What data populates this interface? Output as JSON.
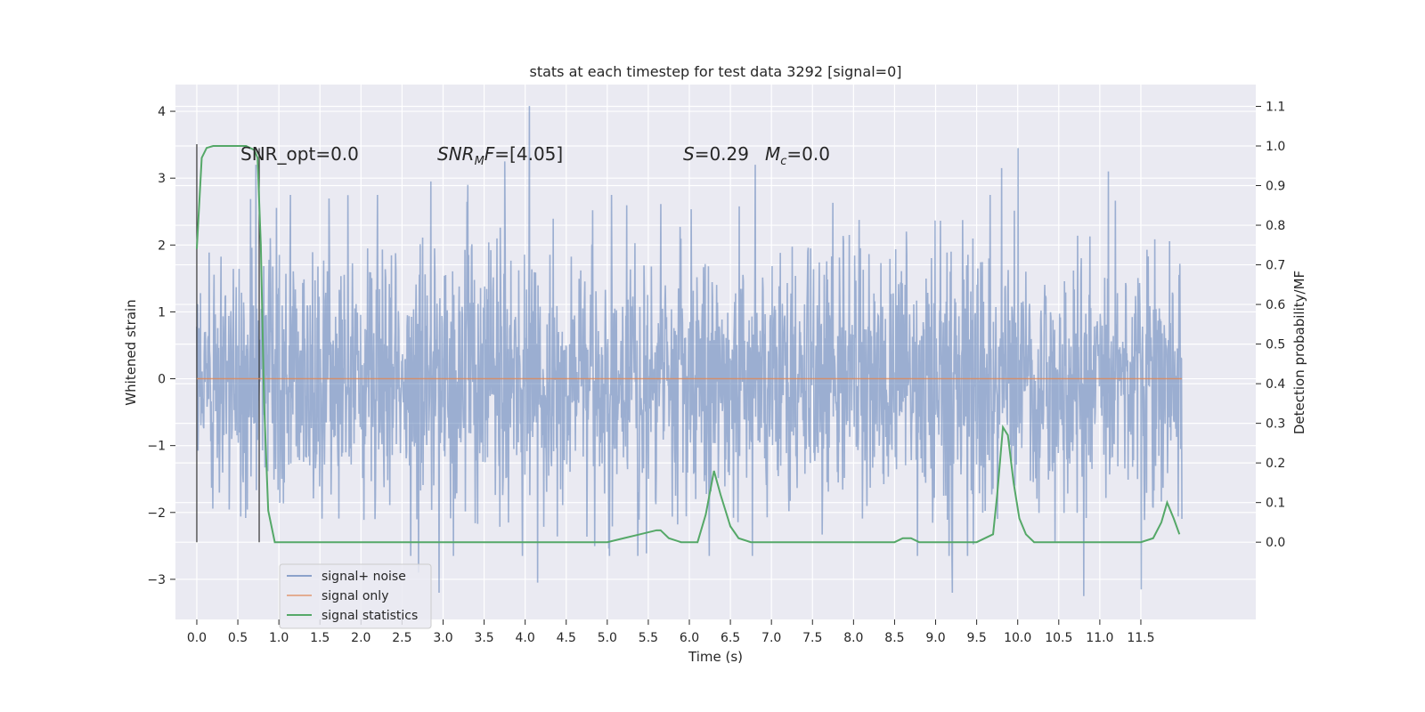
{
  "chart_data": {
    "type": "line",
    "title": "stats at each timestep for test data 3292 [signal=0]",
    "xlabel": "Time (s)",
    "ylabel": "Whitened strain",
    "y2label": "Detection probability/MF",
    "xlim": [
      -0.26,
      12.9
    ],
    "ylim": [
      -3.6,
      4.4
    ],
    "y2lim": [
      -0.195,
      1.155
    ],
    "x_ticks": [
      "0.0",
      "0.5",
      "1.0",
      "1.5",
      "2.0",
      "2.5",
      "3.0",
      "3.5",
      "4.0",
      "4.5",
      "5.0",
      "5.5",
      "6.0",
      "6.5",
      "7.0",
      "7.5",
      "8.0",
      "8.5",
      "9.0",
      "9.5",
      "10.0",
      "10.5",
      "11.0",
      "11.5"
    ],
    "y_ticks": [
      "4",
      "3",
      "2",
      "1",
      "0",
      "−1",
      "−2",
      "−3"
    ],
    "y2_ticks": [
      "1.1",
      "1.0",
      "0.9",
      "0.8",
      "0.7",
      "0.6",
      "0.5",
      "0.4",
      "0.3",
      "0.2",
      "0.1",
      "0.0"
    ],
    "grid": true,
    "legend_position": "lower-left",
    "annotations": {
      "snr_opt": "SNR_opt=0.0",
      "snr_mf": "=[4.05]",
      "s_stat": "=0.29",
      "mc": "=0.0"
    },
    "markers": [
      {
        "x": 0.0,
        "y2_from": -0.0,
        "y2_to": 1.0
      },
      {
        "x": 0.76,
        "y2_from": 0.0,
        "y2_to": 0.99
      }
    ],
    "series": [
      {
        "name": "signal+ noise",
        "color": "#4c72b0",
        "opacity": 0.5,
        "x_range": [
          0.0,
          12.0
        ],
        "amplitude": 1.45,
        "notable_peaks": [
          {
            "x": 0.72,
            "y": 3.2
          },
          {
            "x": 2.85,
            "y": 2.95
          },
          {
            "x": 3.3,
            "y": 2.9
          },
          {
            "x": 3.75,
            "y": 3.25
          },
          {
            "x": 4.05,
            "y": 4.08
          },
          {
            "x": 6.8,
            "y": 3.2
          },
          {
            "x": 9.8,
            "y": 3.15
          },
          {
            "x": 10.0,
            "y": 3.45
          },
          {
            "x": 11.1,
            "y": 3.1
          },
          {
            "x": 2.7,
            "y": -2.9
          },
          {
            "x": 2.95,
            "y": -3.2
          },
          {
            "x": 4.15,
            "y": -3.05
          },
          {
            "x": 9.2,
            "y": -3.2
          },
          {
            "x": 10.8,
            "y": -3.25
          },
          {
            "x": 11.5,
            "y": -3.15
          }
        ]
      },
      {
        "name": "signal only",
        "color": "#dd8452",
        "x": [
          0.0,
          12.0
        ],
        "y": [
          0.0,
          0.0
        ]
      },
      {
        "name": "signal statistics",
        "color": "#55a868",
        "axis": "right",
        "x": [
          0.0,
          0.06,
          0.12,
          0.2,
          0.3,
          0.45,
          0.6,
          0.7,
          0.74,
          0.78,
          0.82,
          0.87,
          0.95,
          1.2,
          1.5,
          2.0,
          3.0,
          4.0,
          5.0,
          5.2,
          5.4,
          5.6,
          5.65,
          5.75,
          5.9,
          6.1,
          6.2,
          6.3,
          6.38,
          6.5,
          6.6,
          6.75,
          6.9,
          7.1,
          7.5,
          8.0,
          8.5,
          8.6,
          8.7,
          8.8,
          9.0,
          9.5,
          9.7,
          9.75,
          9.82,
          9.88,
          9.95,
          10.02,
          10.1,
          10.2,
          10.3,
          10.5,
          11.0,
          11.5,
          11.65,
          11.75,
          11.82,
          11.9,
          11.97
        ],
        "y": [
          0.74,
          0.97,
          0.995,
          1.0,
          1.0,
          1.0,
          1.0,
          0.99,
          0.97,
          0.75,
          0.35,
          0.08,
          0.0,
          0.0,
          0.0,
          0.0,
          0.0,
          0.0,
          0.0,
          0.01,
          0.02,
          0.03,
          0.03,
          0.01,
          0.0,
          0.0,
          0.07,
          0.18,
          0.12,
          0.04,
          0.01,
          0.0,
          0.0,
          0.0,
          0.0,
          0.0,
          0.0,
          0.01,
          0.01,
          0.0,
          0.0,
          0.0,
          0.02,
          0.12,
          0.29,
          0.27,
          0.15,
          0.06,
          0.02,
          0.0,
          0.0,
          0.0,
          0.0,
          0.0,
          0.01,
          0.05,
          0.1,
          0.06,
          0.02
        ]
      }
    ]
  }
}
